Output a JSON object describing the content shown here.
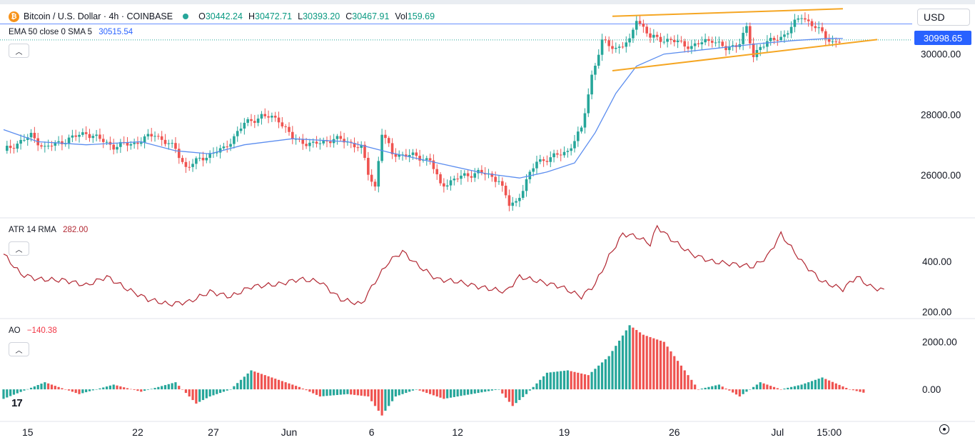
{
  "header": {
    "symbol_icon": "bitcoin-icon",
    "title": "Bitcoin / U.S. Dollar · 4h · COINBASE",
    "ohlc": [
      {
        "label": "O",
        "value": "30442.24"
      },
      {
        "label": "H",
        "value": "30472.71"
      },
      {
        "label": "L",
        "value": "30393.20"
      },
      {
        "label": "C",
        "value": "30467.91"
      },
      {
        "label": "Vol",
        "value": "159.69"
      }
    ],
    "currency": "USD",
    "last_price": "30998.65"
  },
  "indicators": {
    "ema": {
      "name": "EMA 50 close 0 SMA 5",
      "value": "30515.54",
      "color": "#2962ff"
    },
    "atr": {
      "name": "ATR 14 RMA",
      "value": "282.00",
      "color": "#b22833"
    },
    "ao": {
      "name": "AO",
      "value": "−140.38",
      "up_color": "#26a69a",
      "down_color": "#ef5350"
    }
  },
  "colors": {
    "up": "#26a69a",
    "down": "#ef5350",
    "ema": "#5b8def",
    "wedge": "#f5a623",
    "price_line": "#2962ff"
  },
  "chart_data": [
    {
      "type": "candlestick",
      "title": "Bitcoin / U.S. Dollar · 4h · COINBASE",
      "ylim": [
        24700,
        31600
      ],
      "y_ticks": [
        "30000.00",
        "28000.00",
        "26000.00"
      ],
      "y_tick_values": [
        30000,
        28000,
        26000
      ],
      "x_ticks": [
        "15",
        "22",
        "27",
        "Jun",
        "6",
        "12",
        "19",
        "26",
        "Jul",
        "15:00"
      ],
      "x_tick_index": [
        7,
        39,
        61,
        83,
        107,
        132,
        163,
        195,
        225,
        240
      ],
      "n_bars": 250,
      "close_path": [
        [
          0,
          26800
        ],
        [
          8,
          27300
        ],
        [
          12,
          26900
        ],
        [
          18,
          27150
        ],
        [
          24,
          27400
        ],
        [
          32,
          26950
        ],
        [
          38,
          27050
        ],
        [
          44,
          27350
        ],
        [
          50,
          26850
        ],
        [
          53,
          26250
        ],
        [
          60,
          26700
        ],
        [
          64,
          26850
        ],
        [
          70,
          27700
        ],
        [
          75,
          27950
        ],
        [
          80,
          27850
        ],
        [
          84,
          27200
        ],
        [
          90,
          27000
        ],
        [
          96,
          27200
        ],
        [
          100,
          27100
        ],
        [
          104,
          26900
        ],
        [
          106,
          26050
        ],
        [
          108,
          25600
        ],
        [
          110,
          27400
        ],
        [
          113,
          26700
        ],
        [
          118,
          26650
        ],
        [
          124,
          26500
        ],
        [
          127,
          25650
        ],
        [
          132,
          25900
        ],
        [
          138,
          26100
        ],
        [
          144,
          25850
        ],
        [
          147,
          25000
        ],
        [
          149,
          25100
        ],
        [
          152,
          25800
        ],
        [
          155,
          26450
        ],
        [
          160,
          26600
        ],
        [
          164,
          26800
        ],
        [
          168,
          27500
        ],
        [
          171,
          29300
        ],
        [
          174,
          30400
        ],
        [
          178,
          30200
        ],
        [
          182,
          30400
        ],
        [
          184,
          31200
        ],
        [
          188,
          30550
        ],
        [
          194,
          30450
        ],
        [
          200,
          30250
        ],
        [
          206,
          30500
        ],
        [
          210,
          30150
        ],
        [
          214,
          30400
        ],
        [
          216,
          30850
        ],
        [
          218,
          29900
        ],
        [
          220,
          30300
        ],
        [
          226,
          30550
        ],
        [
          232,
          31250
        ],
        [
          236,
          30900
        ],
        [
          239,
          30550
        ],
        [
          241,
          30400
        ],
        [
          244,
          30468
        ]
      ],
      "wedge_upper": [
        [
          177,
          31250
        ],
        [
          244,
          31500
        ]
      ],
      "wedge_lower": [
        [
          177,
          29450
        ],
        [
          254,
          30480
        ]
      ],
      "ema_path": [
        [
          0,
          27500
        ],
        [
          10,
          27100
        ],
        [
          24,
          27000
        ],
        [
          40,
          27100
        ],
        [
          50,
          26800
        ],
        [
          60,
          26700
        ],
        [
          70,
          27000
        ],
        [
          84,
          27200
        ],
        [
          100,
          27100
        ],
        [
          112,
          26750
        ],
        [
          130,
          26300
        ],
        [
          140,
          26050
        ],
        [
          150,
          25900
        ],
        [
          158,
          26100
        ],
        [
          166,
          26400
        ],
        [
          172,
          27400
        ],
        [
          178,
          28700
        ],
        [
          184,
          29600
        ],
        [
          192,
          30000
        ],
        [
          208,
          30200
        ],
        [
          220,
          30350
        ],
        [
          230,
          30450
        ],
        [
          240,
          30520
        ],
        [
          244,
          30515
        ]
      ],
      "last_price_value": 30998.65
    },
    {
      "type": "line",
      "title": "ATR 14 RMA",
      "ylim": [
        190,
        560
      ],
      "y_ticks": [
        "400.00",
        "200.00"
      ],
      "y_tick_values": [
        400,
        200
      ],
      "points": [
        [
          0,
          430
        ],
        [
          5,
          350
        ],
        [
          10,
          330
        ],
        [
          18,
          325
        ],
        [
          24,
          305
        ],
        [
          30,
          340
        ],
        [
          36,
          290
        ],
        [
          42,
          250
        ],
        [
          48,
          230
        ],
        [
          54,
          240
        ],
        [
          60,
          280
        ],
        [
          66,
          260
        ],
        [
          72,
          300
        ],
        [
          80,
          310
        ],
        [
          86,
          330
        ],
        [
          92,
          320
        ],
        [
          98,
          250
        ],
        [
          104,
          230
        ],
        [
          108,
          320
        ],
        [
          112,
          400
        ],
        [
          116,
          440
        ],
        [
          120,
          390
        ],
        [
          126,
          330
        ],
        [
          132,
          320
        ],
        [
          138,
          300
        ],
        [
          146,
          280
        ],
        [
          150,
          340
        ],
        [
          156,
          320
        ],
        [
          162,
          300
        ],
        [
          168,
          260
        ],
        [
          172,
          310
        ],
        [
          176,
          420
        ],
        [
          180,
          510
        ],
        [
          184,
          500
        ],
        [
          188,
          470
        ],
        [
          190,
          540
        ],
        [
          194,
          490
        ],
        [
          200,
          430
        ],
        [
          206,
          400
        ],
        [
          212,
          390
        ],
        [
          218,
          380
        ],
        [
          222,
          420
        ],
        [
          226,
          510
        ],
        [
          232,
          400
        ],
        [
          238,
          320
        ],
        [
          244,
          290
        ],
        [
          248,
          340
        ],
        [
          252,
          300
        ],
        [
          256,
          285
        ]
      ]
    },
    {
      "type": "bar",
      "title": "AO",
      "ylim": [
        -1200,
        2800
      ],
      "y_ticks": [
        "2000.00",
        "0.00"
      ],
      "y_tick_values": [
        2000,
        0
      ],
      "points": [
        [
          0,
          -400
        ],
        [
          12,
          300
        ],
        [
          22,
          -200
        ],
        [
          32,
          200
        ],
        [
          40,
          -100
        ],
        [
          50,
          300
        ],
        [
          56,
          -600
        ],
        [
          60,
          -300
        ],
        [
          66,
          0
        ],
        [
          72,
          800
        ],
        [
          78,
          500
        ],
        [
          86,
          100
        ],
        [
          92,
          -300
        ],
        [
          100,
          -200
        ],
        [
          106,
          -300
        ],
        [
          110,
          -1100
        ],
        [
          114,
          -300
        ],
        [
          120,
          0
        ],
        [
          128,
          -400
        ],
        [
          136,
          -200
        ],
        [
          144,
          0
        ],
        [
          148,
          -700
        ],
        [
          152,
          -200
        ],
        [
          158,
          700
        ],
        [
          164,
          800
        ],
        [
          170,
          600
        ],
        [
          176,
          1400
        ],
        [
          182,
          2700
        ],
        [
          186,
          2300
        ],
        [
          192,
          2000
        ],
        [
          198,
          800
        ],
        [
          202,
          0
        ],
        [
          208,
          200
        ],
        [
          214,
          -300
        ],
        [
          220,
          300
        ],
        [
          226,
          0
        ],
        [
          232,
          200
        ],
        [
          238,
          500
        ],
        [
          246,
          0
        ],
        [
          250,
          -140
        ]
      ]
    }
  ]
}
